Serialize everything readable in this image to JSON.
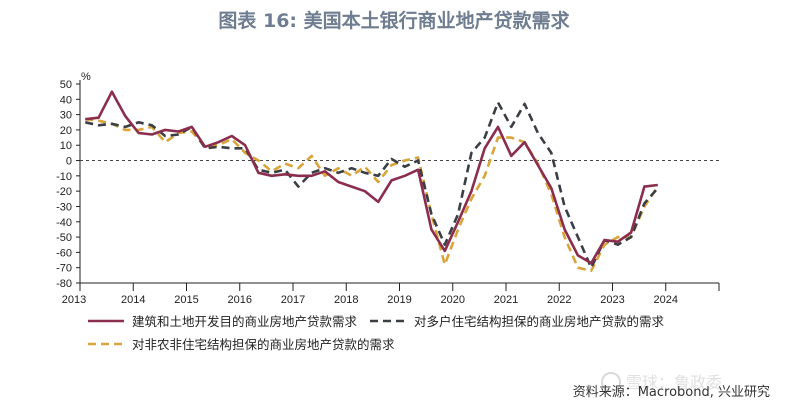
{
  "title": "图表 16: 美国本土银行商业地产贷款需求",
  "source": "资料来源：Macrobond, 兴业研究",
  "chart_data": {
    "type": "line",
    "unit": "%",
    "ylim": [
      -80,
      50
    ],
    "yticks": [
      50,
      40,
      30,
      20,
      10,
      0,
      -10,
      -20,
      -30,
      -40,
      -50,
      -60,
      -70,
      -80
    ],
    "xlim": [
      2013.0,
      2025.0
    ],
    "year_ticks": [
      2013,
      2014,
      2015,
      2016,
      2017,
      2018,
      2019,
      2020,
      2021,
      2022,
      2023,
      2024
    ],
    "year_labels": [
      "2013",
      "2014",
      "2015",
      "2016",
      "2017",
      "2018",
      "2019",
      "2020",
      "2021",
      "2022",
      "2023",
      "2024"
    ],
    "zero_line": true,
    "series": [
      {
        "name": "建筑和土地开发目的商业房地产贷款需求",
        "color": "#8b2d4c",
        "dash": "solid",
        "points": [
          [
            2013.1,
            27
          ],
          [
            2013.35,
            28
          ],
          [
            2013.6,
            45
          ],
          [
            2013.85,
            29
          ],
          [
            2014.1,
            18
          ],
          [
            2014.35,
            17
          ],
          [
            2014.6,
            20
          ],
          [
            2014.85,
            19
          ],
          [
            2015.1,
            22
          ],
          [
            2015.35,
            9
          ],
          [
            2015.6,
            12
          ],
          [
            2015.85,
            16
          ],
          [
            2016.1,
            10
          ],
          [
            2016.35,
            -8
          ],
          [
            2016.6,
            -10
          ],
          [
            2016.85,
            -9
          ],
          [
            2017.1,
            -10
          ],
          [
            2017.35,
            -10
          ],
          [
            2017.6,
            -7
          ],
          [
            2017.85,
            -14
          ],
          [
            2018.1,
            -17
          ],
          [
            2018.35,
            -20
          ],
          [
            2018.6,
            -27
          ],
          [
            2018.85,
            -13
          ],
          [
            2019.1,
            -10
          ],
          [
            2019.35,
            -6
          ],
          [
            2019.6,
            -45
          ],
          [
            2019.85,
            -59
          ],
          [
            2020.1,
            -40
          ],
          [
            2020.35,
            -20
          ],
          [
            2020.6,
            8
          ],
          [
            2020.85,
            22
          ],
          [
            2021.1,
            3
          ],
          [
            2021.35,
            12
          ],
          [
            2021.6,
            -3
          ],
          [
            2021.85,
            -18
          ],
          [
            2022.1,
            -45
          ],
          [
            2022.35,
            -62
          ],
          [
            2022.6,
            -67
          ],
          [
            2022.85,
            -52
          ],
          [
            2023.1,
            -53
          ],
          [
            2023.35,
            -47
          ],
          [
            2023.6,
            -17
          ],
          [
            2023.85,
            -16
          ]
        ]
      },
      {
        "name": "对多户住宅结构担保的商业房地产贷款的需求",
        "color": "#3b3e45",
        "dash": "long",
        "points": [
          [
            2013.1,
            25
          ],
          [
            2013.35,
            23
          ],
          [
            2013.6,
            24
          ],
          [
            2013.85,
            22
          ],
          [
            2014.1,
            25
          ],
          [
            2014.35,
            23
          ],
          [
            2014.6,
            16
          ],
          [
            2014.85,
            17
          ],
          [
            2015.1,
            22
          ],
          [
            2015.35,
            8
          ],
          [
            2015.6,
            9
          ],
          [
            2015.85,
            8
          ],
          [
            2016.1,
            8
          ],
          [
            2016.35,
            -6
          ],
          [
            2016.6,
            -8
          ],
          [
            2016.85,
            -6
          ],
          [
            2017.1,
            -17
          ],
          [
            2017.35,
            -8
          ],
          [
            2017.6,
            -5
          ],
          [
            2017.85,
            -8
          ],
          [
            2018.1,
            -5
          ],
          [
            2018.35,
            -8
          ],
          [
            2018.6,
            -10
          ],
          [
            2018.85,
            1
          ],
          [
            2019.1,
            -4
          ],
          [
            2019.35,
            0
          ],
          [
            2019.6,
            -35
          ],
          [
            2019.85,
            -55
          ],
          [
            2020.1,
            -35
          ],
          [
            2020.35,
            5
          ],
          [
            2020.6,
            15
          ],
          [
            2020.85,
            38
          ],
          [
            2021.1,
            22
          ],
          [
            2021.35,
            37
          ],
          [
            2021.6,
            18
          ],
          [
            2021.85,
            5
          ],
          [
            2022.1,
            -30
          ],
          [
            2022.35,
            -50
          ],
          [
            2022.6,
            -70
          ],
          [
            2022.85,
            -52
          ],
          [
            2023.1,
            -55
          ],
          [
            2023.35,
            -50
          ],
          [
            2023.6,
            -28
          ],
          [
            2023.85,
            -18
          ]
        ]
      },
      {
        "name": "对非农非住宅结构担保的商业房地产贷款的需求",
        "color": "#d9a43a",
        "dash": "long",
        "points": [
          [
            2013.1,
            27
          ],
          [
            2013.35,
            26
          ],
          [
            2013.6,
            24
          ],
          [
            2013.85,
            20
          ],
          [
            2014.1,
            20
          ],
          [
            2014.35,
            22
          ],
          [
            2014.6,
            12
          ],
          [
            2014.85,
            18
          ],
          [
            2015.1,
            19
          ],
          [
            2015.35,
            9
          ],
          [
            2015.6,
            10
          ],
          [
            2015.85,
            14
          ],
          [
            2016.1,
            5
          ],
          [
            2016.35,
            0
          ],
          [
            2016.6,
            -7
          ],
          [
            2016.85,
            -2
          ],
          [
            2017.1,
            -5
          ],
          [
            2017.35,
            3
          ],
          [
            2017.6,
            -10
          ],
          [
            2017.85,
            -5
          ],
          [
            2018.1,
            -10
          ],
          [
            2018.35,
            -4
          ],
          [
            2018.6,
            -14
          ],
          [
            2018.85,
            -3
          ],
          [
            2019.1,
            0
          ],
          [
            2019.35,
            2
          ],
          [
            2019.6,
            -35
          ],
          [
            2019.85,
            -68
          ],
          [
            2020.1,
            -45
          ],
          [
            2020.35,
            -25
          ],
          [
            2020.6,
            -10
          ],
          [
            2020.85,
            15
          ],
          [
            2021.1,
            15
          ],
          [
            2021.35,
            12
          ],
          [
            2021.6,
            -2
          ],
          [
            2021.85,
            -22
          ],
          [
            2022.1,
            -50
          ],
          [
            2022.35,
            -70
          ],
          [
            2022.6,
            -72
          ],
          [
            2022.85,
            -55
          ],
          [
            2023.1,
            -50
          ],
          [
            2023.35,
            -50
          ],
          [
            2023.6,
            -30
          ],
          [
            2023.85,
            -17
          ]
        ]
      }
    ],
    "legend_placement": "bottom"
  },
  "watermark": "雪球：鲁政委"
}
